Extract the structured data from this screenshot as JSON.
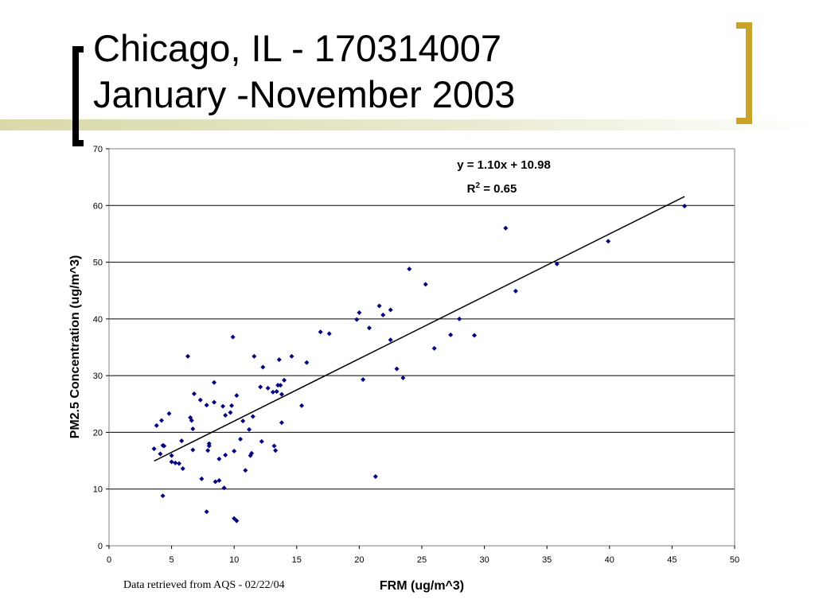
{
  "slide": {
    "title_line1": "Chicago, IL - 170314007",
    "title_line2": "January -November 2003",
    "source_note": "Data retrieved from AQS - 02/22/04"
  },
  "colors": {
    "accent_bracket": "#c9a227",
    "marker": "#000080",
    "trendline": "#000000",
    "gridline": "#000000"
  },
  "chart_data": {
    "type": "scatter",
    "xlabel": "FRM (ug/m^3)",
    "ylabel": "PM2.5 Concentration (ug/m^3)",
    "xlim": [
      0,
      50
    ],
    "ylim": [
      0,
      70
    ],
    "xticks": [
      0,
      5,
      10,
      15,
      20,
      25,
      30,
      35,
      40,
      45,
      50
    ],
    "yticks": [
      0,
      10,
      20,
      30,
      40,
      50,
      60,
      70
    ],
    "grid": "horizontal",
    "equation": "y = 1.10x + 10.98",
    "r2_label": "R",
    "r2_sup": "2",
    "r2_value": " = 0.65",
    "trendline": {
      "x": [
        3.6,
        46
      ],
      "y": [
        14.94,
        61.58
      ]
    },
    "series": [
      {
        "marker": "diamond",
        "points": [
          [
            3.6,
            17.1
          ],
          [
            3.8,
            21.2
          ],
          [
            4.1,
            16.2
          ],
          [
            4.2,
            22.1
          ],
          [
            4.3,
            17.7
          ],
          [
            4.4,
            17.6
          ],
          [
            4.3,
            8.8
          ],
          [
            4.8,
            23.3
          ],
          [
            5.0,
            15.9
          ],
          [
            5.0,
            14.8
          ],
          [
            5.3,
            14.6
          ],
          [
            5.6,
            14.5
          ],
          [
            5.8,
            18.5
          ],
          [
            5.9,
            13.6
          ],
          [
            6.3,
            33.4
          ],
          [
            6.5,
            22.6
          ],
          [
            6.6,
            22.1
          ],
          [
            6.7,
            20.6
          ],
          [
            6.7,
            16.9
          ],
          [
            6.8,
            26.8
          ],
          [
            7.3,
            25.7
          ],
          [
            7.4,
            11.8
          ],
          [
            7.8,
            24.8
          ],
          [
            7.8,
            6.0
          ],
          [
            7.9,
            16.8
          ],
          [
            8.0,
            17.6
          ],
          [
            8.0,
            18.0
          ],
          [
            8.4,
            25.3
          ],
          [
            8.4,
            28.8
          ],
          [
            8.5,
            11.3
          ],
          [
            8.8,
            15.3
          ],
          [
            8.8,
            11.5
          ],
          [
            9.1,
            24.6
          ],
          [
            9.2,
            10.2
          ],
          [
            9.3,
            23.0
          ],
          [
            9.3,
            16.0
          ],
          [
            9.7,
            23.5
          ],
          [
            9.8,
            24.7
          ],
          [
            9.9,
            36.8
          ],
          [
            10.0,
            16.7
          ],
          [
            10.0,
            4.8
          ],
          [
            10.2,
            26.5
          ],
          [
            10.2,
            4.4
          ],
          [
            10.5,
            18.8
          ],
          [
            10.7,
            22.0
          ],
          [
            10.9,
            13.3
          ],
          [
            11.2,
            20.5
          ],
          [
            11.3,
            15.9
          ],
          [
            11.4,
            16.3
          ],
          [
            11.5,
            22.8
          ],
          [
            11.6,
            33.4
          ],
          [
            12.1,
            28.0
          ],
          [
            12.2,
            18.4
          ],
          [
            12.3,
            31.5
          ],
          [
            12.7,
            27.8
          ],
          [
            13.1,
            27.1
          ],
          [
            13.2,
            17.6
          ],
          [
            13.3,
            16.8
          ],
          [
            13.4,
            27.2
          ],
          [
            13.5,
            28.3
          ],
          [
            13.6,
            32.8
          ],
          [
            13.7,
            28.3
          ],
          [
            13.8,
            21.7
          ],
          [
            13.8,
            26.7
          ],
          [
            14.0,
            29.2
          ],
          [
            14.6,
            33.4
          ],
          [
            15.4,
            24.7
          ],
          [
            15.8,
            32.3
          ],
          [
            16.9,
            37.7
          ],
          [
            17.6,
            37.4
          ],
          [
            19.8,
            39.9
          ],
          [
            20.0,
            41.1
          ],
          [
            20.3,
            29.3
          ],
          [
            20.8,
            38.4
          ],
          [
            21.3,
            12.2
          ],
          [
            21.6,
            42.3
          ],
          [
            21.9,
            40.7
          ],
          [
            22.5,
            41.6
          ],
          [
            22.5,
            36.3
          ],
          [
            23.0,
            31.2
          ],
          [
            23.5,
            29.6
          ],
          [
            24.0,
            48.8
          ],
          [
            25.3,
            46.1
          ],
          [
            26.0,
            34.8
          ],
          [
            27.3,
            37.2
          ],
          [
            28.0,
            40.0
          ],
          [
            29.2,
            37.1
          ],
          [
            31.7,
            56.0
          ],
          [
            32.5,
            44.9
          ],
          [
            35.8,
            49.7
          ],
          [
            39.9,
            53.7
          ],
          [
            46.0,
            59.9
          ]
        ]
      }
    ]
  }
}
